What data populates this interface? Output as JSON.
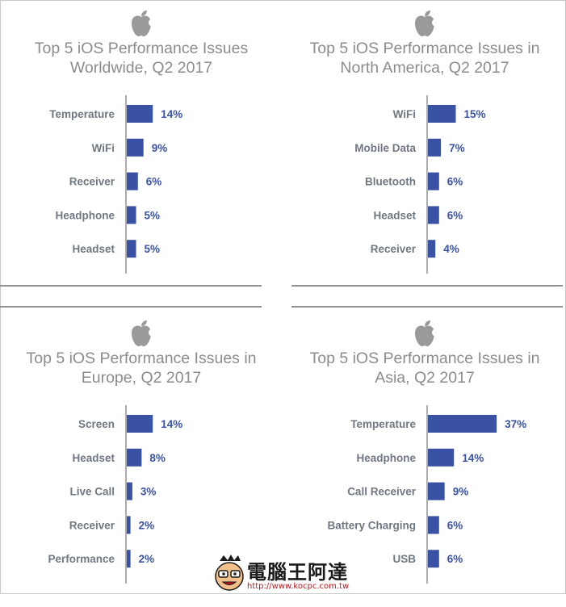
{
  "chart_data": [
    {
      "type": "bar",
      "orientation": "horizontal",
      "title": "Top 5 iOS Performance Issues\nWorldwide, Q2 2017",
      "categories": [
        "Temperature",
        "WiFi",
        "Receiver",
        "Headphone",
        "Headset"
      ],
      "values": [
        14,
        9,
        6,
        5,
        5
      ],
      "value_labels": [
        "14%",
        "9%",
        "6%",
        "5%",
        "5%"
      ],
      "xlim": [
        0,
        37
      ],
      "color": "#3a52a3",
      "grid": false
    },
    {
      "type": "bar",
      "orientation": "horizontal",
      "title": "Top 5 iOS Performance Issues in\nNorth America, Q2 2017",
      "categories": [
        "WiFi",
        "Mobile Data",
        "Bluetooth",
        "Headset",
        "Receiver"
      ],
      "values": [
        15,
        7,
        6,
        6,
        4
      ],
      "value_labels": [
        "15%",
        "7%",
        "6%",
        "6%",
        "4%"
      ],
      "xlim": [
        0,
        37
      ],
      "color": "#3a52a3",
      "grid": false
    },
    {
      "type": "bar",
      "orientation": "horizontal",
      "title": "Top 5 iOS Performance Issues in\nEurope, Q2 2017",
      "categories": [
        "Screen",
        "Headset",
        "Live Call",
        "Receiver",
        "Performance"
      ],
      "values": [
        14,
        8,
        3,
        2,
        2
      ],
      "value_labels": [
        "14%",
        "8%",
        "3%",
        "2%",
        "2%"
      ],
      "xlim": [
        0,
        37
      ],
      "color": "#3a52a3",
      "grid": false
    },
    {
      "type": "bar",
      "orientation": "horizontal",
      "title": "Top 5 iOS Performance Issues in\nAsia, Q2 2017",
      "categories": [
        "Temperature",
        "Headphone",
        "Call Receiver",
        "Battery Charging",
        "USB"
      ],
      "values": [
        37,
        14,
        9,
        6,
        6
      ],
      "value_labels": [
        "37%",
        "14%",
        "9%",
        "6%",
        "6%"
      ],
      "xlim": [
        0,
        37
      ],
      "color": "#3a52a3",
      "grid": false
    }
  ],
  "watermark": {
    "brand": "電腦王阿達",
    "url": "http://www.kocpc.com.tw",
    "icon": "mascot-face-icon"
  },
  "icons": {
    "panel_logo": "apple-logo-icon"
  }
}
